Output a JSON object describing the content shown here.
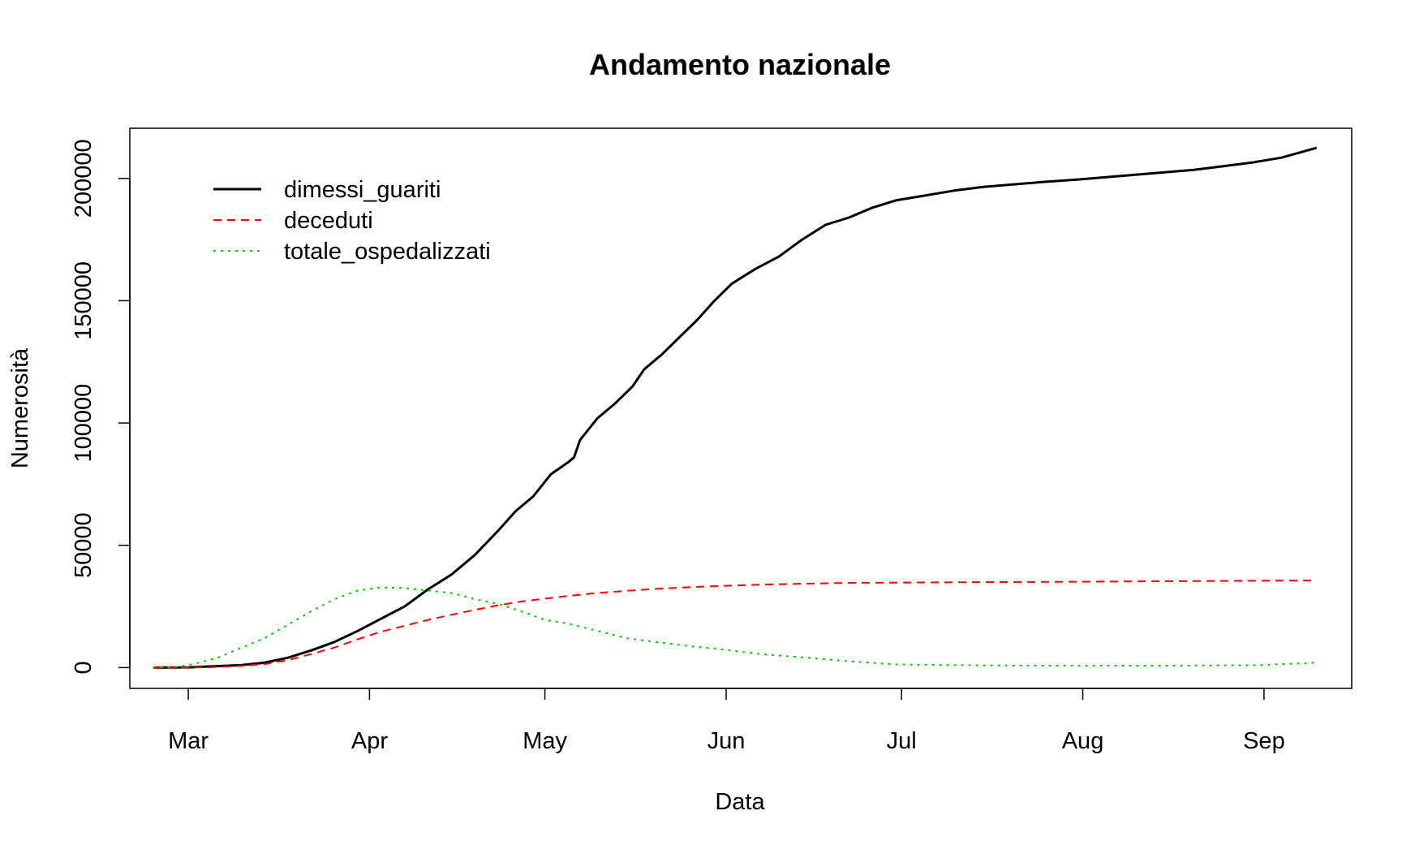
{
  "chart_data": {
    "type": "line",
    "title": "Andamento nazionale",
    "xlabel": "Data",
    "ylabel": "Numerosità",
    "x_axis_type": "date",
    "xlim": [
      "2020-02-20",
      "2020-09-16"
    ],
    "ylim": [
      -8500,
      220500
    ],
    "x_ticks": [
      {
        "date": "2020-03-01",
        "label": "Mar"
      },
      {
        "date": "2020-04-01",
        "label": "Apr"
      },
      {
        "date": "2020-05-01",
        "label": "May"
      },
      {
        "date": "2020-06-01",
        "label": "Jun"
      },
      {
        "date": "2020-07-01",
        "label": "Jul"
      },
      {
        "date": "2020-08-01",
        "label": "Aug"
      },
      {
        "date": "2020-09-01",
        "label": "Sep"
      }
    ],
    "y_ticks": [
      {
        "value": 0,
        "label": "0"
      },
      {
        "value": 50000,
        "label": "50000"
      },
      {
        "value": 100000,
        "label": "100000"
      },
      {
        "value": 150000,
        "label": "150000"
      },
      {
        "value": 200000,
        "label": "200000"
      }
    ],
    "grid": false,
    "legend_position": "top-left",
    "series": [
      {
        "name": "dimessi_guariti",
        "color": "#000000",
        "line_style": "solid",
        "points": [
          [
            "2020-02-24",
            0
          ],
          [
            "2020-03-01",
            100
          ],
          [
            "2020-03-05",
            500
          ],
          [
            "2020-03-10",
            1000
          ],
          [
            "2020-03-14",
            2000
          ],
          [
            "2020-03-18",
            4000
          ],
          [
            "2020-03-22",
            7000
          ],
          [
            "2020-03-26",
            10500
          ],
          [
            "2020-03-30",
            15000
          ],
          [
            "2020-04-03",
            20000
          ],
          [
            "2020-04-07",
            25000
          ],
          [
            "2020-04-11",
            32000
          ],
          [
            "2020-04-15",
            38000
          ],
          [
            "2020-04-19",
            46000
          ],
          [
            "2020-04-23",
            56000
          ],
          [
            "2020-04-26",
            64000
          ],
          [
            "2020-04-29",
            70000
          ],
          [
            "2020-05-02",
            79000
          ],
          [
            "2020-05-05",
            84000
          ],
          [
            "2020-05-06",
            86000
          ],
          [
            "2020-05-07",
            93000
          ],
          [
            "2020-05-10",
            102000
          ],
          [
            "2020-05-13",
            108000
          ],
          [
            "2020-05-16",
            115000
          ],
          [
            "2020-05-18",
            122000
          ],
          [
            "2020-05-21",
            128000
          ],
          [
            "2020-05-24",
            135000
          ],
          [
            "2020-05-27",
            142000
          ],
          [
            "2020-05-30",
            150000
          ],
          [
            "2020-06-02",
            157000
          ],
          [
            "2020-06-06",
            163000
          ],
          [
            "2020-06-10",
            168000
          ],
          [
            "2020-06-14",
            175000
          ],
          [
            "2020-06-18",
            181000
          ],
          [
            "2020-06-22",
            184000
          ],
          [
            "2020-06-26",
            188000
          ],
          [
            "2020-06-30",
            191000
          ],
          [
            "2020-07-05",
            193000
          ],
          [
            "2020-07-10",
            195000
          ],
          [
            "2020-07-15",
            196500
          ],
          [
            "2020-07-20",
            197500
          ],
          [
            "2020-07-25",
            198500
          ],
          [
            "2020-07-31",
            199500
          ],
          [
            "2020-08-05",
            200500
          ],
          [
            "2020-08-10",
            201500
          ],
          [
            "2020-08-15",
            202500
          ],
          [
            "2020-08-20",
            203500
          ],
          [
            "2020-08-25",
            205000
          ],
          [
            "2020-08-30",
            206500
          ],
          [
            "2020-09-04",
            208500
          ],
          [
            "2020-09-10",
            212500
          ]
        ]
      },
      {
        "name": "deceduti",
        "color": "#ff0000",
        "line_style": "dashed",
        "points": [
          [
            "2020-02-24",
            0
          ],
          [
            "2020-03-01",
            30
          ],
          [
            "2020-03-05",
            150
          ],
          [
            "2020-03-10",
            650
          ],
          [
            "2020-03-14",
            1400
          ],
          [
            "2020-03-18",
            3000
          ],
          [
            "2020-03-22",
            5500
          ],
          [
            "2020-03-26",
            8200
          ],
          [
            "2020-03-30",
            11600
          ],
          [
            "2020-04-03",
            14700
          ],
          [
            "2020-04-07",
            17100
          ],
          [
            "2020-04-11",
            19500
          ],
          [
            "2020-04-15",
            21600
          ],
          [
            "2020-04-19",
            23600
          ],
          [
            "2020-04-23",
            25500
          ],
          [
            "2020-04-27",
            27000
          ],
          [
            "2020-05-01",
            28200
          ],
          [
            "2020-05-05",
            29300
          ],
          [
            "2020-05-10",
            30500
          ],
          [
            "2020-05-15",
            31400
          ],
          [
            "2020-05-20",
            32200
          ],
          [
            "2020-05-25",
            32800
          ],
          [
            "2020-05-31",
            33400
          ],
          [
            "2020-06-07",
            33900
          ],
          [
            "2020-06-15",
            34300
          ],
          [
            "2020-06-22",
            34650
          ],
          [
            "2020-06-30",
            34750
          ],
          [
            "2020-07-15",
            34950
          ],
          [
            "2020-07-31",
            35100
          ],
          [
            "2020-08-15",
            35300
          ],
          [
            "2020-08-31",
            35500
          ],
          [
            "2020-09-10",
            35600
          ]
        ]
      },
      {
        "name": "totale_ospedalizzati",
        "color": "#00cd00",
        "line_style": "dotted",
        "points": [
          [
            "2020-02-24",
            0
          ],
          [
            "2020-02-28",
            300
          ],
          [
            "2020-03-02",
            1500
          ],
          [
            "2020-03-06",
            4000
          ],
          [
            "2020-03-10",
            8000
          ],
          [
            "2020-03-14",
            12000
          ],
          [
            "2020-03-18",
            17500
          ],
          [
            "2020-03-22",
            23000
          ],
          [
            "2020-03-26",
            28000
          ],
          [
            "2020-03-30",
            31500
          ],
          [
            "2020-04-03",
            32800
          ],
          [
            "2020-04-07",
            32500
          ],
          [
            "2020-04-11",
            31500
          ],
          [
            "2020-04-15",
            30500
          ],
          [
            "2020-04-19",
            28000
          ],
          [
            "2020-04-23",
            26000
          ],
          [
            "2020-04-27",
            23000
          ],
          [
            "2020-05-01",
            19500
          ],
          [
            "2020-05-05",
            18000
          ],
          [
            "2020-05-10",
            15000
          ],
          [
            "2020-05-15",
            12000
          ],
          [
            "2020-05-20",
            10500
          ],
          [
            "2020-05-25",
            9000
          ],
          [
            "2020-05-31",
            7500
          ],
          [
            "2020-06-07",
            5500
          ],
          [
            "2020-06-15",
            4000
          ],
          [
            "2020-06-22",
            2600
          ],
          [
            "2020-06-30",
            1300
          ],
          [
            "2020-07-15",
            900
          ],
          [
            "2020-07-31",
            750
          ],
          [
            "2020-08-15",
            800
          ],
          [
            "2020-08-31",
            1000
          ],
          [
            "2020-09-10",
            2000
          ]
        ]
      }
    ]
  }
}
